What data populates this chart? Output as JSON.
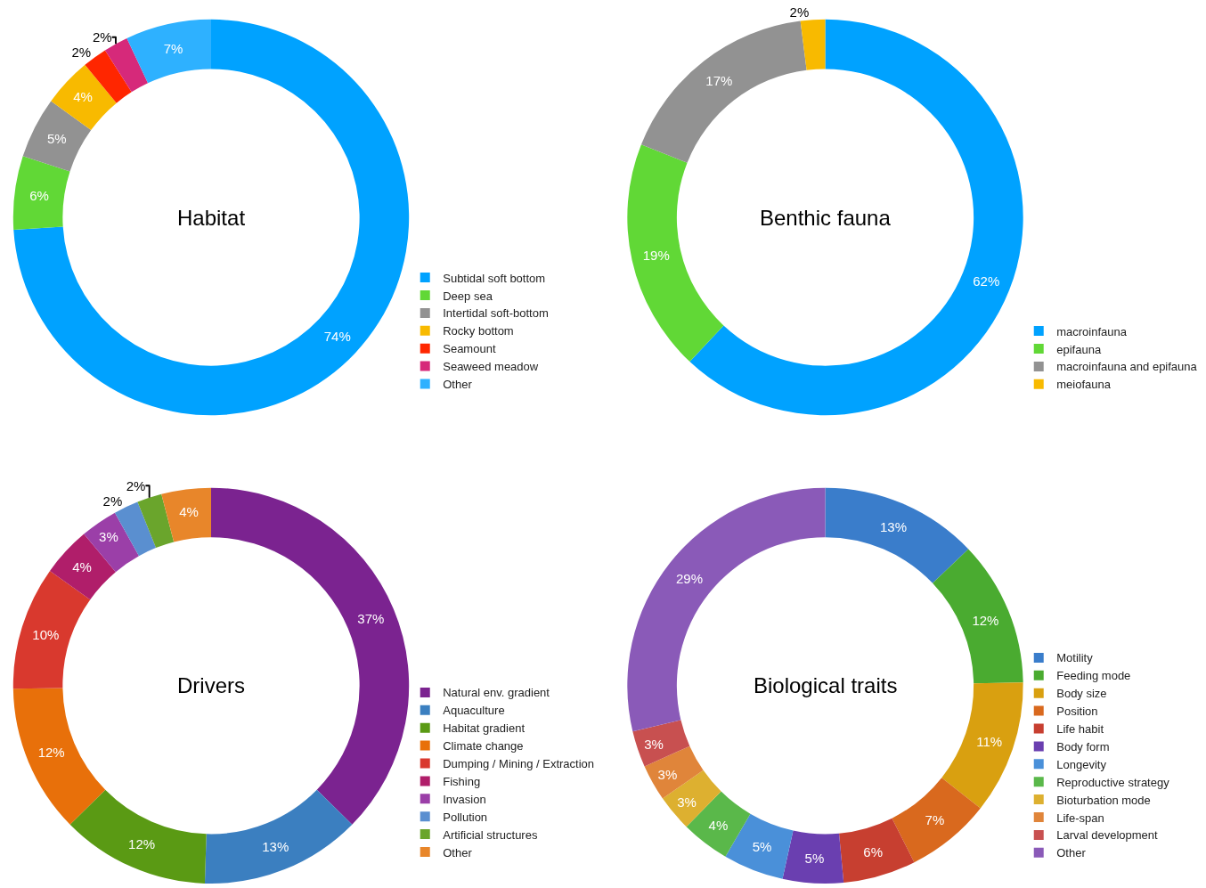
{
  "chart_data": [
    {
      "type": "donut",
      "title": "Habitat",
      "categories": [
        "Subtidal soft bottom",
        "Deep sea",
        "Intertidal soft-bottom",
        "Rocky bottom",
        "Seamount",
        "Seaweed meadow",
        "Other"
      ],
      "values": [
        74,
        6,
        5,
        4,
        2,
        2,
        7
      ],
      "value_labels": [
        "74%",
        "6%",
        "5%",
        "4%",
        "2%",
        "2%",
        "7%"
      ],
      "colors": [
        "#00a2ff",
        "#61d836",
        "#929292",
        "#f8ba00",
        "#ff2600",
        "#d6297a",
        "#2eb1ff"
      ],
      "legend": "bottom right"
    },
    {
      "type": "donut",
      "title": "Benthic fauna",
      "categories": [
        "macroinfauna",
        "epifauna",
        "macroinfauna and epifauna",
        "meiofauna"
      ],
      "values": [
        62,
        19,
        17,
        2
      ],
      "value_labels": [
        "62%",
        "19%",
        "17%",
        "2%"
      ],
      "colors": [
        "#00a2ff",
        "#61d836",
        "#929292",
        "#f8ba00"
      ],
      "legend": "bottom right"
    },
    {
      "type": "donut",
      "title": "Drivers",
      "categories": [
        "Natural env. gradient",
        "Aquaculture",
        "Habitat gradient",
        "Climate change",
        "Dumping / Mining / Extraction",
        "Fishing",
        "Invasion",
        "Pollution",
        "Artificial structures",
        "Other"
      ],
      "values": [
        37,
        13,
        12,
        12,
        10,
        4,
        3,
        2,
        2,
        4
      ],
      "value_labels": [
        "37%",
        "13%",
        "12%",
        "12%",
        "10%",
        "4%",
        "3%",
        "2%",
        "2%",
        "4%"
      ],
      "colors": [
        "#7b2390",
        "#3b7fc0",
        "#5a9a14",
        "#e8700a",
        "#d9392e",
        "#b01e6a",
        "#9b3fa8",
        "#5a8fd0",
        "#6aa52c",
        "#e8862a"
      ],
      "legend": "bottom right"
    },
    {
      "type": "donut",
      "title": "Biological traits",
      "categories": [
        "Motility",
        "Feeding mode",
        "Body size",
        "Position",
        "Life habit",
        "Body form",
        "Longevity",
        "Reproductive strategy",
        "Bioturbation mode",
        "Life-span",
        "Larval development",
        "Other"
      ],
      "values": [
        13,
        12,
        11,
        7,
        6,
        5,
        5,
        4,
        3,
        3,
        3,
        29
      ],
      "value_labels": [
        "13%",
        "12%",
        "11%",
        "7%",
        "6%",
        "5%",
        "5%",
        "4%",
        "3%",
        "3%",
        "3%",
        "29%"
      ],
      "colors": [
        "#3a7dcb",
        "#4aab30",
        "#d9a010",
        "#d9691e",
        "#c73f30",
        "#6a3fb0",
        "#4a90d9",
        "#5ab84a",
        "#ddb030",
        "#e0853a",
        "#c85050",
        "#8a5ab8"
      ],
      "legend": "bottom right"
    }
  ]
}
